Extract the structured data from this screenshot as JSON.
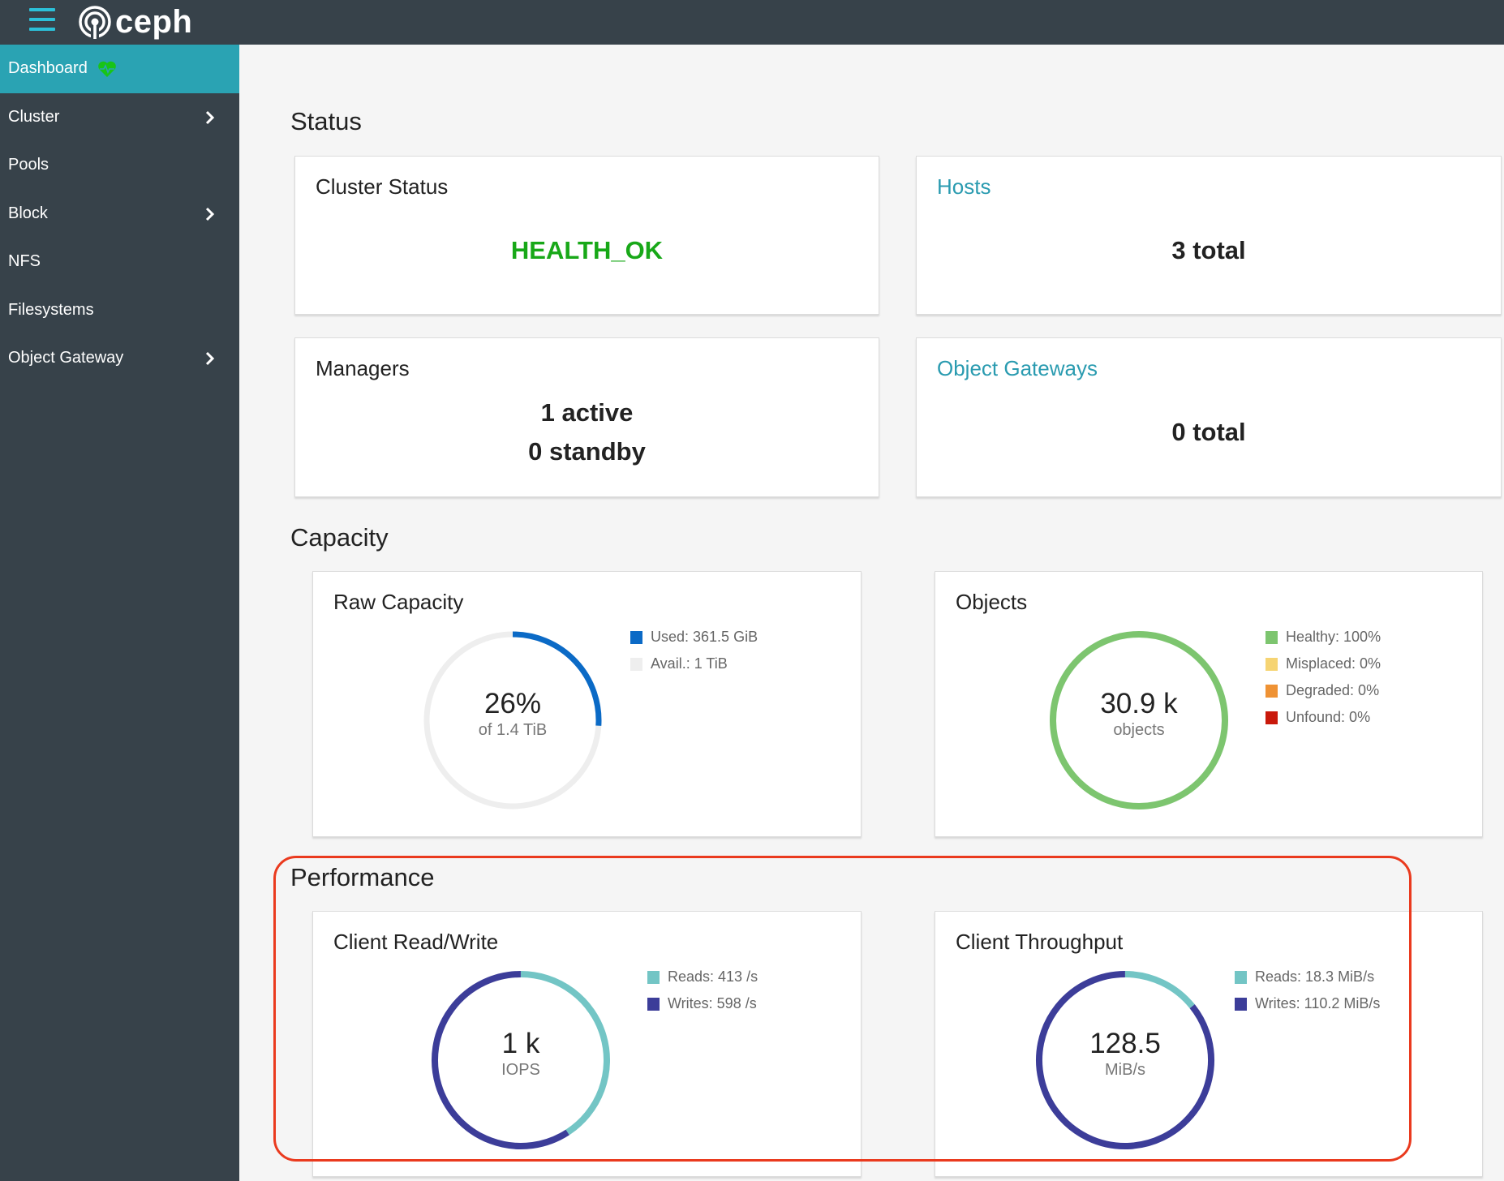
{
  "header": {
    "brand": "ceph"
  },
  "sidebar": {
    "items": [
      {
        "label": "Dashboard",
        "active": true
      },
      {
        "label": "Cluster",
        "submenu": true
      },
      {
        "label": "Pools"
      },
      {
        "label": "Block",
        "submenu": true
      },
      {
        "label": "NFS"
      },
      {
        "label": "Filesystems"
      },
      {
        "label": "Object Gateway",
        "submenu": true
      }
    ]
  },
  "status": {
    "title": "Status",
    "cluster_status": {
      "title": "Cluster Status",
      "value": "HEALTH_OK",
      "color": "#18a818"
    },
    "hosts": {
      "title": "Hosts",
      "value": "3 total"
    },
    "managers": {
      "title": "Managers",
      "active": "1 active",
      "standby": "0 standby"
    },
    "object_gateways": {
      "title": "Object Gateways",
      "value": "0 total"
    }
  },
  "capacity": {
    "title": "Capacity",
    "raw_capacity": {
      "title": "Raw Capacity",
      "percent_label": "26%",
      "sub_label": "of 1.4 TiB",
      "used_fraction": 0.26,
      "legend": [
        {
          "label": "Used: 361.5 GiB",
          "color": "#0b6ac6"
        },
        {
          "label": "Avail.: 1 TiB",
          "color": "#eeeeee"
        }
      ]
    },
    "objects": {
      "title": "Objects",
      "main_label": "30.9 k",
      "sub_label": "objects",
      "healthy_fraction": 1.0,
      "legend": [
        {
          "label": "Healthy: 100%",
          "color": "#7dc56f"
        },
        {
          "label": "Misplaced: 0%",
          "color": "#f6d473"
        },
        {
          "label": "Degraded: 0%",
          "color": "#ef9234"
        },
        {
          "label": "Unfound: 0%",
          "color": "#c9190b"
        }
      ]
    }
  },
  "performance": {
    "title": "Performance",
    "client_rw": {
      "title": "Client Read/Write",
      "main_label": "1 k",
      "sub_label": "IOPS",
      "reads": 413,
      "writes": 598,
      "legend": [
        {
          "label": "Reads: 413 /s",
          "color": "#73c5c5"
        },
        {
          "label": "Writes: 598 /s",
          "color": "#3c3d99"
        }
      ]
    },
    "client_throughput": {
      "title": "Client Throughput",
      "main_label": "128.5",
      "sub_label": "MiB/s",
      "reads": 18.3,
      "writes": 110.2,
      "legend": [
        {
          "label": "Reads: 18.3 MiB/s",
          "color": "#73c5c5"
        },
        {
          "label": "Writes: 110.2 MiB/s",
          "color": "#3c3d99"
        }
      ]
    }
  }
}
